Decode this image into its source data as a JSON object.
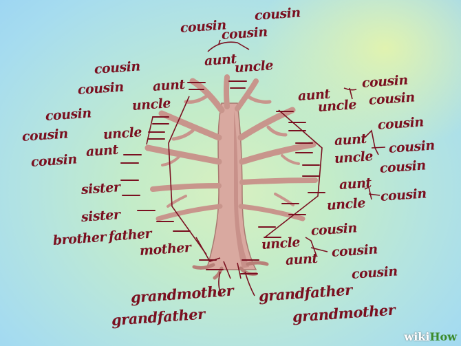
{
  "labels": {
    "top_cousin_1": "cousin",
    "top_cousin_2": "cousin",
    "top_cousin_3": "cousin",
    "top_aunt": "aunt",
    "top_uncle": "uncle",
    "left_cousin_1": "cousin",
    "left_cousin_2": "cousin",
    "left_aunt_1": "aunt",
    "left_uncle_1": "uncle",
    "left_cousin_3": "cousin",
    "left_cousin_4": "cousin",
    "left_cousin_5": "cousin",
    "left_uncle_2": "uncle",
    "left_aunt_2": "aunt",
    "sister_1": "sister",
    "sister_2": "sister",
    "brother": "brother",
    "father": "father",
    "mother": "mother",
    "right_aunt_1": "aunt",
    "right_uncle_1": "uncle",
    "right_cousin_1": "cousin",
    "right_cousin_2": "cousin",
    "right_aunt_2": "aunt",
    "right_uncle_2": "uncle",
    "right_cousin_3": "cousin",
    "right_cousin_4": "cousin",
    "right_cousin_5": "cousin",
    "right_aunt_3": "aunt",
    "right_uncle_3": "uncle",
    "right_cousin_6": "cousin",
    "low_uncle": "uncle",
    "low_aunt": "aunt",
    "low_cousin_1": "cousin",
    "low_cousin_2": "cousin",
    "low_cousin_3": "cousin",
    "grandmother_left": "grandmother",
    "grandfather_left": "grandfather",
    "grandfather_right": "grandfather",
    "grandmother_right": "grandmother"
  },
  "watermark": {
    "prefix": "wiki",
    "suffix": "How"
  },
  "colors": {
    "label": "#7a1020",
    "trunk": "#d9a9a0",
    "trunk_shade": "#c08880",
    "line": "#7a1020"
  }
}
